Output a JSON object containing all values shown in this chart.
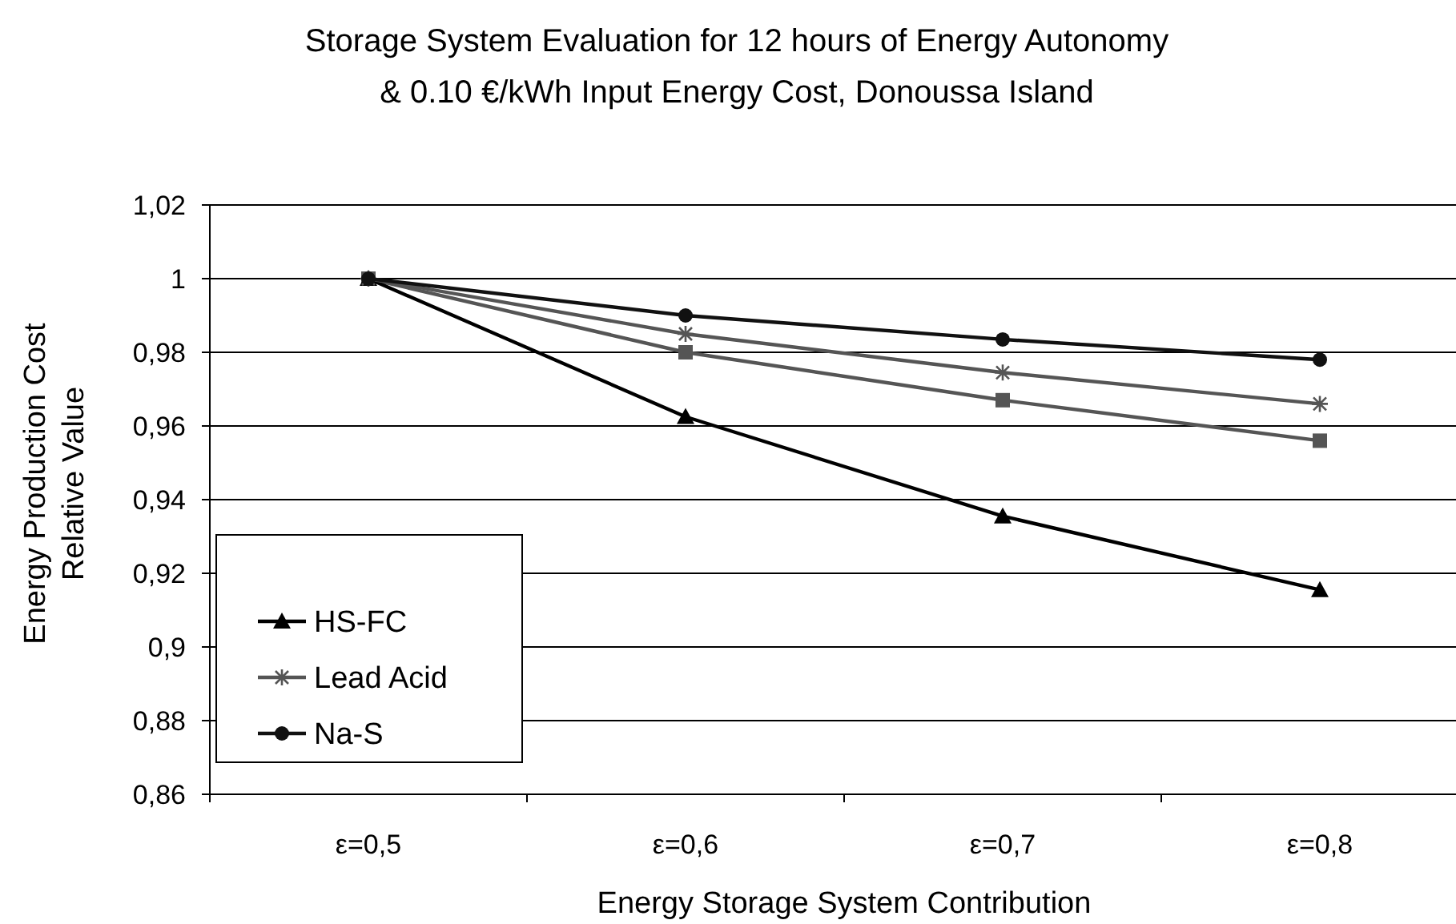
{
  "chart_data": {
    "type": "line",
    "title": "Storage System Evaluation  for 12 hours of Energy Autonomy & 0.10 €/kWh Input Energy Cost, Donoussa Island",
    "xlabel": "Energy Storage System Contribution",
    "ylabel": "Energy Production Cost Relative Value",
    "categories": [
      "ε=0,5",
      "ε=0,6",
      "ε=0,7",
      "ε=0,8"
    ],
    "ylim": [
      0.86,
      1.02
    ],
    "yticks": [
      {
        "value": 0.86,
        "label": "0,86"
      },
      {
        "value": 0.88,
        "label": "0,88"
      },
      {
        "value": 0.9,
        "label": "0,9"
      },
      {
        "value": 0.92,
        "label": "0,92"
      },
      {
        "value": 0.94,
        "label": "0,94"
      },
      {
        "value": 0.96,
        "label": "0,96"
      },
      {
        "value": 0.98,
        "label": "0,98"
      },
      {
        "value": 1,
        "label": "1"
      },
      {
        "value": 1.02,
        "label": "1,02"
      }
    ],
    "grid": "y",
    "legend": "bottom left",
    "line_style": "solid",
    "series": [
      {
        "color": "#555555",
        "marker": "square",
        "values": [
          1,
          0.98,
          0.967,
          0.956
        ]
      },
      {
        "name": "HS-FC",
        "color": "#000000",
        "marker": "triangle",
        "values": [
          1,
          0.9625,
          0.9355,
          0.9155
        ]
      },
      {
        "name": "Lead Acid",
        "color": "#555555",
        "marker": "cross",
        "values": [
          1,
          0.985,
          0.9745,
          0.966
        ]
      },
      {
        "name": "Na-S",
        "color": "#111111",
        "marker": "circle",
        "values": [
          1,
          0.99,
          0.9835,
          0.978
        ]
      }
    ]
  }
}
